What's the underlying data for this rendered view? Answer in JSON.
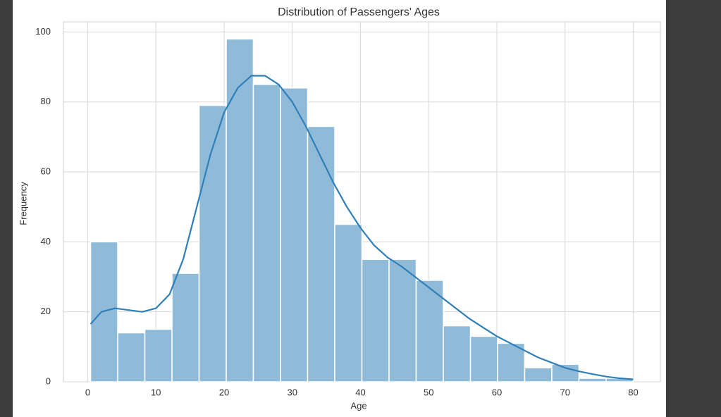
{
  "chart_data": {
    "type": "histogram",
    "title": "Distribution of Passengers' Ages",
    "x_label": "Age",
    "y_label": "Frequency",
    "bins": [
      0.42,
      4.4,
      8.38,
      12.36,
      16.34,
      20.32,
      24.29,
      28.27,
      32.25,
      36.23,
      40.21,
      44.19,
      48.17,
      52.15,
      56.13,
      60.1,
      64.08,
      68.06,
      72.04,
      76.02,
      80
    ],
    "counts": [
      40,
      14,
      15,
      31,
      79,
      98,
      85,
      84,
      73,
      45,
      35,
      35,
      29,
      16,
      13,
      11,
      4,
      5,
      1,
      1
    ],
    "color": "#8fbbd9",
    "kde": {
      "color": "#2f7fb8",
      "x": [
        0.42,
        2,
        4,
        6,
        8,
        10,
        12,
        14,
        16,
        18,
        20,
        22,
        24,
        26,
        28,
        30,
        32,
        34,
        36,
        38,
        40,
        42,
        44,
        46,
        48,
        50,
        52,
        54,
        56,
        58,
        60,
        62,
        64,
        66,
        68,
        70,
        72,
        74,
        76,
        78,
        80
      ],
      "y": [
        16.5,
        20,
        21,
        20.5,
        20,
        21,
        25,
        35,
        50,
        65,
        77,
        84,
        87.5,
        87.5,
        85,
        80,
        73,
        65,
        57,
        50,
        44,
        39,
        35.5,
        33,
        30,
        27,
        24,
        21,
        18,
        15.5,
        13,
        11,
        9,
        7,
        5.5,
        4,
        3,
        2.2,
        1.5,
        1,
        0.7
      ]
    },
    "xlim": [
      -3.56,
      83.98
    ],
    "ylim": [
      0,
      102.9
    ],
    "xticks": [
      0,
      10,
      20,
      30,
      40,
      50,
      60,
      70,
      80
    ],
    "yticks": [
      0,
      20,
      40,
      60,
      80,
      100
    ],
    "grid": true
  }
}
